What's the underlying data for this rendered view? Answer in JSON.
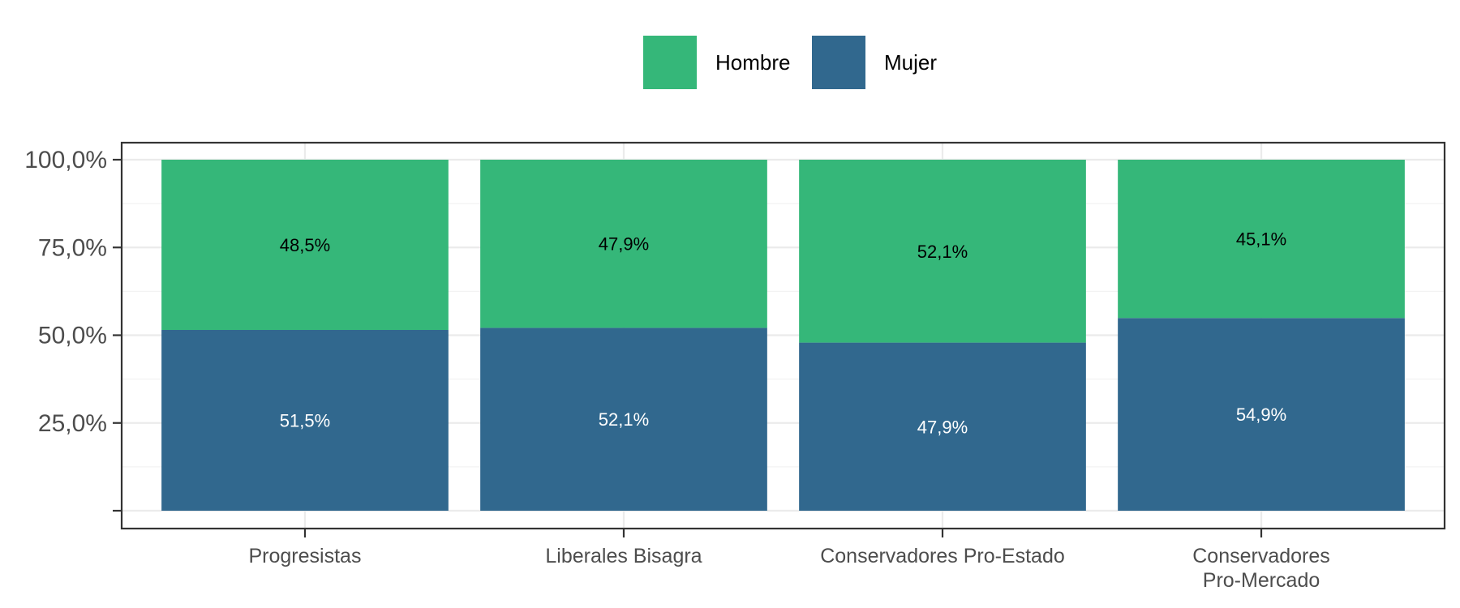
{
  "chart_data": {
    "type": "bar",
    "stacked": true,
    "categories": [
      [
        "Progresistas"
      ],
      [
        "Liberales Bisagra"
      ],
      [
        "Conservadores Pro-Estado"
      ],
      [
        "Conservadores",
        "Pro-Mercado"
      ]
    ],
    "series": [
      {
        "name": "Mujer",
        "color": "#31688e",
        "label_color": "#ffffff",
        "values": [
          51.5,
          52.1,
          47.9,
          54.9
        ],
        "labels": [
          "51,5%",
          "52,1%",
          "47,9%",
          "54,9%"
        ]
      },
      {
        "name": "Hombre",
        "color": "#35b779",
        "label_color": "#000000",
        "values": [
          48.5,
          47.9,
          52.1,
          45.1
        ],
        "labels": [
          "48,5%",
          "47,9%",
          "52,1%",
          "45,1%"
        ]
      }
    ],
    "legend": {
      "position": "top",
      "order": [
        "Hombre",
        "Mujer"
      ]
    },
    "ylim": [
      0,
      100
    ],
    "yticks": [
      25,
      50,
      75,
      100
    ],
    "ytick_labels": [
      "25,0%",
      "50,0%",
      "75,0%",
      "100,0%"
    ],
    "grid": true,
    "xlabel": "",
    "ylabel": "",
    "title": ""
  }
}
